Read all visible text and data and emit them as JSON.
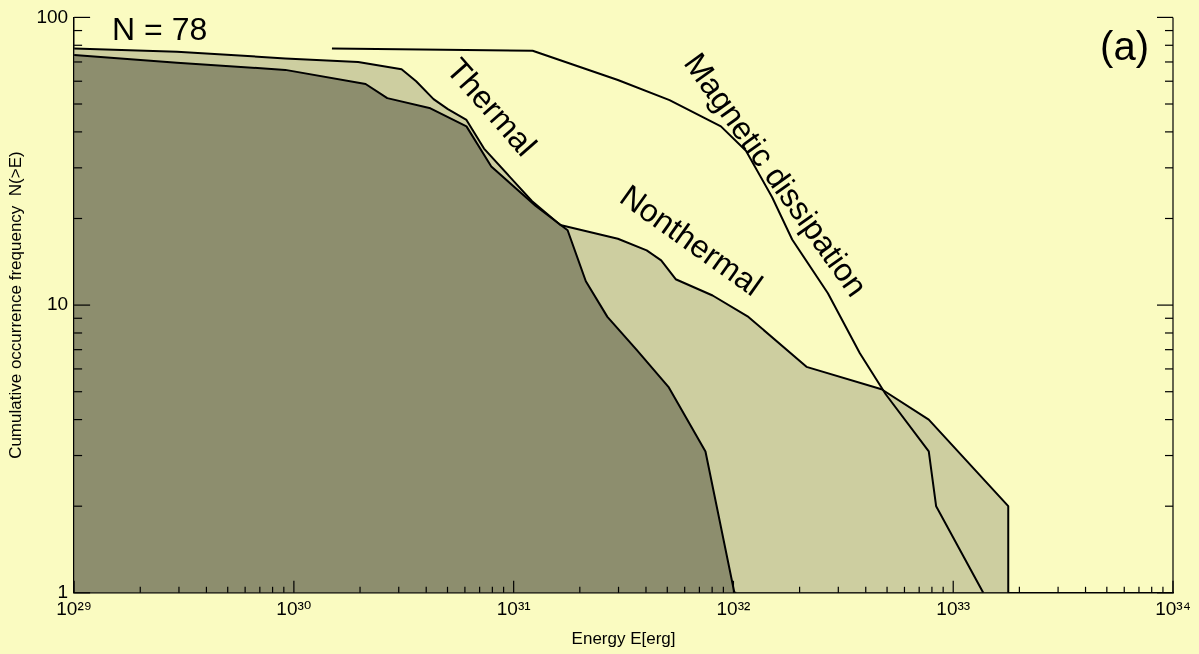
{
  "chart_data": {
    "type": "area",
    "xlabel": "Energy E[erg]",
    "ylabel": "Cumulative occurrence frequency  N(>E)",
    "log": "xy",
    "grid": false,
    "legend": false,
    "xlim": [
      1e+29,
      1e+34
    ],
    "ylim": [
      1,
      100
    ],
    "xticks": [
      {
        "value": 1e+29,
        "label": "10²⁹"
      },
      {
        "value": 2e+29,
        "label": null
      },
      {
        "value": 3e+29,
        "label": null
      },
      {
        "value": 4e+29,
        "label": null
      },
      {
        "value": 5e+29,
        "label": null
      },
      {
        "value": 6e+29,
        "label": null
      },
      {
        "value": 7e+29,
        "label": null
      },
      {
        "value": 8e+29,
        "label": null
      },
      {
        "value": 9e+29,
        "label": null
      },
      {
        "value": 1e+30,
        "label": "10³⁰"
      },
      {
        "value": 2e+30,
        "label": null
      },
      {
        "value": 3e+30,
        "label": null
      },
      {
        "value": 4e+30,
        "label": null
      },
      {
        "value": 5e+30,
        "label": null
      },
      {
        "value": 6e+30,
        "label": null
      },
      {
        "value": 7e+30,
        "label": null
      },
      {
        "value": 8e+30,
        "label": null
      },
      {
        "value": 9e+30,
        "label": null
      },
      {
        "value": 1e+31,
        "label": "10³¹"
      },
      {
        "value": 2e+31,
        "label": null
      },
      {
        "value": 3e+31,
        "label": null
      },
      {
        "value": 4e+31,
        "label": null
      },
      {
        "value": 5e+31,
        "label": null
      },
      {
        "value": 6e+31,
        "label": null
      },
      {
        "value": 7e+31,
        "label": null
      },
      {
        "value": 8e+31,
        "label": null
      },
      {
        "value": 9e+31,
        "label": null
      },
      {
        "value": 1e+32,
        "label": "10³²"
      },
      {
        "value": 2e+32,
        "label": null
      },
      {
        "value": 3e+32,
        "label": null
      },
      {
        "value": 4e+32,
        "label": null
      },
      {
        "value": 5e+32,
        "label": null
      },
      {
        "value": 6e+32,
        "label": null
      },
      {
        "value": 7e+32,
        "label": null
      },
      {
        "value": 8e+32,
        "label": null
      },
      {
        "value": 9e+32,
        "label": null
      },
      {
        "value": 1e+33,
        "label": "10³³"
      },
      {
        "value": 2e+33,
        "label": null
      },
      {
        "value": 3e+33,
        "label": null
      },
      {
        "value": 4e+33,
        "label": null
      },
      {
        "value": 5e+33,
        "label": null
      },
      {
        "value": 6e+33,
        "label": null
      },
      {
        "value": 7e+33,
        "label": null
      },
      {
        "value": 8e+33,
        "label": null
      },
      {
        "value": 9e+33,
        "label": null
      },
      {
        "value": 1e+34,
        "label": "10³⁴"
      }
    ],
    "yticks": [
      1,
      {
        "value": 2,
        "label": null
      },
      {
        "value": 3,
        "label": null
      },
      {
        "value": 4,
        "label": null
      },
      {
        "value": 5,
        "label": null
      },
      {
        "value": 6,
        "label": null
      },
      {
        "value": 7,
        "label": null
      },
      {
        "value": 8,
        "label": null
      },
      {
        "value": 9,
        "label": null
      },
      10,
      {
        "value": 20,
        "label": null
      },
      {
        "value": 30,
        "label": null
      },
      {
        "value": 40,
        "label": null
      },
      {
        "value": 50,
        "label": null
      },
      {
        "value": 60,
        "label": null
      },
      {
        "value": 70,
        "label": null
      },
      {
        "value": 80,
        "label": null
      },
      {
        "value": 90,
        "label": null
      },
      100
    ],
    "annotations": [
      "N = 78",
      "(a)"
    ],
    "series": [
      {
        "name": "Nonthermal",
        "color": "#000000",
        "x": [
          1e+29,
          2.94e+29,
          9.14e+29,
          1.96e+30,
          3.09e+30,
          3.6e+30,
          4.32e+30,
          5.02e+30,
          6.1e+30,
          7.33e+30,
          1.21e+31,
          1.63e+31,
          2.98e+31,
          4.03e+31,
          4.69e+31,
          5.46e+31,
          8.04e+31,
          1.17e+32,
          2.15e+32,
          4.72e+32,
          7.74e+32,
          1.78e+33,
          1.78e+33
        ],
        "values": [
          78,
          76,
          72,
          70,
          66,
          60,
          52,
          48,
          44,
          35,
          23,
          19,
          17,
          15.5,
          14.3,
          12.3,
          10.8,
          9.1,
          6.1,
          5.1,
          4,
          2,
          1
        ]
      },
      {
        "name": "Thermal",
        "color": "#000000",
        "x": [
          1e+29,
          2.94e+29,
          9.14e+29,
          2.12e+30,
          2.66e+30,
          4.18e+30,
          6.1e+30,
          7.91e+30,
          1.26e+31,
          1.76e+31,
          2.13e+31,
          2.67e+31,
          3.62e+31,
          5.06e+31,
          7.46e+31,
          1.01e+32,
          1.03e+32
        ],
        "values": [
          74,
          69.5,
          65.7,
          58.7,
          52.4,
          48.3,
          41.8,
          30.3,
          22.1,
          18.2,
          12.1,
          9.1,
          7,
          5.2,
          3.1,
          1,
          1
        ]
      },
      {
        "name": "Magnetic dissipation",
        "type": "line",
        "color": "#000000",
        "x": [
          1.49e+30,
          1.22e+31,
          2.98e+31,
          5.12e+31,
          8.77e+31,
          1.14e+32,
          1.5e+32,
          1.85e+32,
          2.69e+32,
          3.76e+32,
          4.93e+32,
          7.74e+32,
          8.36e+32,
          1.37e+33
        ],
        "values": [
          78,
          76.6,
          60.6,
          51.6,
          41.8,
          34.4,
          23.7,
          16.9,
          11,
          6.8,
          4.9,
          3.1,
          2,
          1
        ]
      }
    ]
  }
}
